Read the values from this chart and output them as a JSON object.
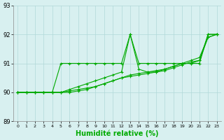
{
  "title": "Humidité relative (%)",
  "xlabel": "Humidité relative (%)",
  "ylabel": "",
  "xlim": [
    -0.5,
    23.5
  ],
  "ylim": [
    89,
    93
  ],
  "yticks": [
    89,
    90,
    91,
    92,
    93
  ],
  "xticks": [
    0,
    1,
    2,
    3,
    4,
    5,
    6,
    7,
    8,
    9,
    10,
    11,
    12,
    13,
    14,
    15,
    16,
    17,
    18,
    19,
    20,
    21,
    22,
    23
  ],
  "background_color": "#d8f0f0",
  "grid_color": "#b0d8d8",
  "line_color": "#00aa00",
  "series": [
    [
      90.0,
      90.0,
      90.0,
      90.0,
      90.0,
      91.0,
      91.0,
      91.0,
      91.0,
      91.0,
      91.0,
      91.0,
      91.0,
      92.0,
      91.0,
      91.0,
      91.0,
      91.0,
      91.0,
      91.0,
      91.0,
      91.0,
      92.0,
      92.0
    ],
    [
      90.0,
      90.0,
      90.0,
      90.0,
      90.0,
      90.0,
      90.1,
      90.2,
      90.3,
      90.4,
      90.5,
      90.6,
      90.7,
      92.0,
      90.8,
      90.7,
      90.7,
      90.8,
      90.9,
      91.0,
      91.0,
      91.1,
      92.0,
      92.0
    ],
    [
      90.0,
      90.0,
      90.0,
      90.0,
      90.0,
      90.0,
      90.05,
      90.1,
      90.15,
      90.2,
      90.3,
      90.4,
      90.5,
      90.6,
      90.65,
      90.7,
      90.75,
      90.8,
      90.9,
      91.0,
      91.1,
      91.2,
      91.9,
      92.0
    ],
    [
      90.0,
      90.0,
      90.0,
      90.0,
      90.0,
      90.0,
      90.0,
      90.05,
      90.1,
      90.2,
      90.3,
      90.4,
      90.5,
      90.55,
      90.6,
      90.65,
      90.7,
      90.75,
      90.85,
      90.95,
      91.05,
      91.1,
      91.9,
      92.0
    ]
  ]
}
